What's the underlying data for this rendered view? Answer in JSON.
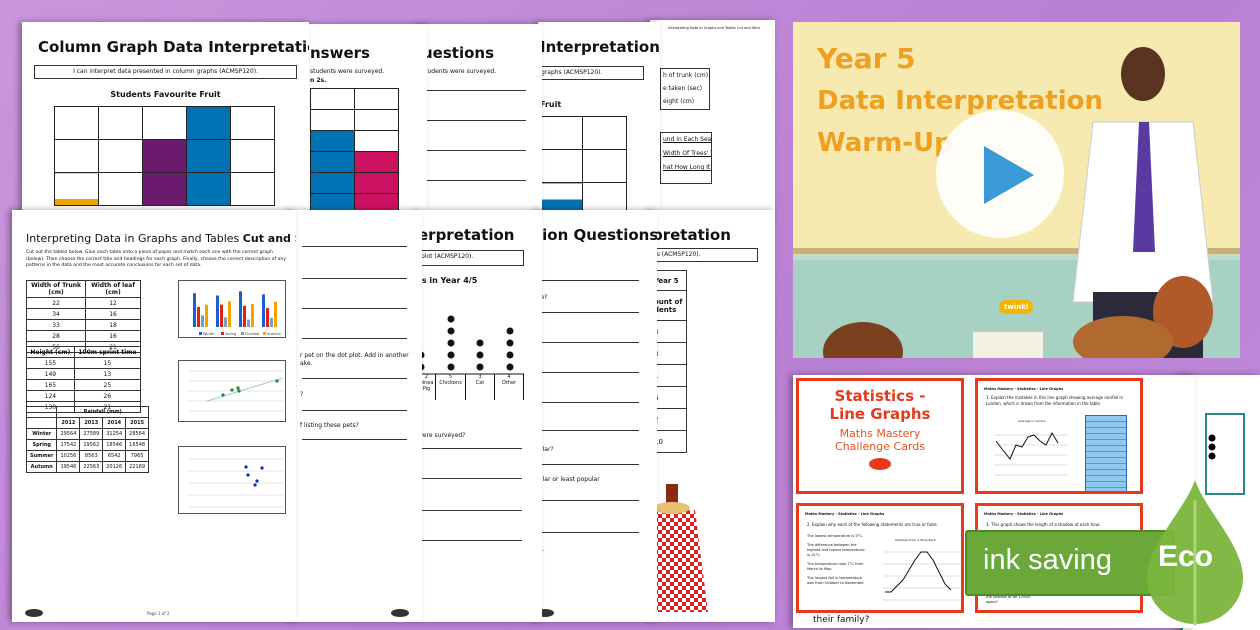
{
  "back_pages": {
    "p1": {
      "title": "Column Graph Data Interpretation",
      "objective": "I can interpret data presented in column graphs (ACMSP120).",
      "chart_title": "Students Favourite Fruit"
    },
    "p2": {
      "title": "nswers",
      "line1": "students were surveyed.",
      "line2": "n 2s."
    },
    "p3": {
      "title": "uestions",
      "line1": "students were surveyed."
    },
    "p4": {
      "title": "Interpretation",
      "objective": "graphs (ACMSP120).",
      "chart_title": "Fruit"
    },
    "p5": {
      "header": "Interpreting Data in Graphs and Tables Cut and Stick",
      "labels": [
        "h of trunk (cm)",
        "e taken (sec)",
        "eight (cm)"
      ],
      "titles": [
        "und in Each Season",
        "Width Of Trees' Trunks",
        "hat How Long It Takes"
      ]
    }
  },
  "front_pages": {
    "f1": {
      "title": "Interpreting Data in Graphs and Tables",
      "title_bold": "Cut and Stick",
      "instructions": "Cut out the tables below. Glue each table onto a piece of paper and match each one with the correct graph (below). Then choose the correct title and headings for each graph. Finally, choose the correct description of any patterns in the data and the most accurate conclusions for each set of data.",
      "table1": {
        "headers": [
          "Width of Trunk (cm)",
          "Width of leaf (cm)"
        ],
        "rows": [
          [
            "22",
            "12"
          ],
          [
            "34",
            "16"
          ],
          [
            "33",
            "18"
          ],
          [
            "28",
            "16"
          ],
          [
            "56",
            "21"
          ]
        ]
      },
      "table2": {
        "headers": [
          "Height (cm)",
          "100m sprint time"
        ],
        "rows": [
          [
            "155",
            "15"
          ],
          [
            "149",
            "13"
          ],
          [
            "165",
            "25"
          ],
          [
            "124",
            "26"
          ],
          [
            "130",
            "21"
          ]
        ]
      },
      "table3": {
        "caption": "Rainfall (mm)",
        "years": [
          "2012",
          "2013",
          "2014",
          "2015"
        ],
        "rows": [
          [
            "Winter",
            "29564",
            "27589",
            "31254",
            "28564"
          ],
          [
            "Spring",
            "17542",
            "19562",
            "18546",
            "16548"
          ],
          [
            "Summer",
            "10256",
            "8563",
            "6542",
            "7965"
          ],
          [
            "Autumn",
            "19546",
            "22563",
            "20126",
            "22169"
          ]
        ]
      },
      "legend": [
        "Winter",
        "Spring",
        "Summer",
        "Autumn"
      ],
      "footer": "Page 1 of 2"
    },
    "f2": {
      "q1": "r pet on the dot plot. Add in another",
      "q1b": "ake.",
      "q2": "?",
      "q3": "f listing these pets?"
    },
    "f3": {
      "title": "erpretation",
      "objective": "plot (ACMSP120).",
      "chart_title": "ts in Year 4/5",
      "categories": [
        {
          "count": "2",
          "label": "uinea Pig"
        },
        {
          "count": "5",
          "label": "Chickens"
        },
        {
          "count": "3",
          "label": "Cat"
        },
        {
          "count": "4",
          "label": "Other"
        }
      ],
      "question": "were surveyed?"
    },
    "f4": {
      "title": "tion Questions",
      "q1": "ble?",
      "q2": "pular?",
      "q3": "pular or least popular",
      "q4": "ph."
    },
    "f5": {
      "title": "pretation",
      "objective": "es (ACMSP120).",
      "table_header": "Year 5",
      "table_sub": "ount of dents",
      "values": [
        "4",
        "3",
        "1",
        "6",
        "2",
        "10"
      ]
    }
  },
  "video": {
    "line1": "Year 5",
    "line2": "Data Interpretation",
    "line3": "Warm-Up",
    "badge": "twinkl",
    "play_icon": "play-icon"
  },
  "cards": {
    "title1": "Statistics -",
    "title2": "Line Graphs",
    "sub1": "Maths Mastery",
    "sub2": "Challenge Cards",
    "card_header": "Maths Mastery - Statistics - Line Graphs",
    "q1": "1. Explain the mistakes in this line graph showing average rainfall in London, which is drawn from the information in the table.",
    "q1_chart_title": "Average in London",
    "q2": "2. Explain why each of the following statements are true or false.",
    "q2_bullets": [
      "The lowest temperature is 5°C.",
      "The difference between the highest and lowest temperature is 12°C.",
      "The temperature rose 7°C from March to May.",
      "The largest fall in temperature was from October to November."
    ],
    "q2_chart_title": "Shadows from a Wine Rack",
    "q3": "3. This graph shows the length of a shadow at each hour.",
    "q3_bullet": "What time would you expect the shadow to be 120cm again?",
    "bottom_text": "their family?",
    "behind_text": "s"
  },
  "eco": {
    "label": "ink saving",
    "badge": "Eco",
    "accent": "#6aa83a"
  }
}
